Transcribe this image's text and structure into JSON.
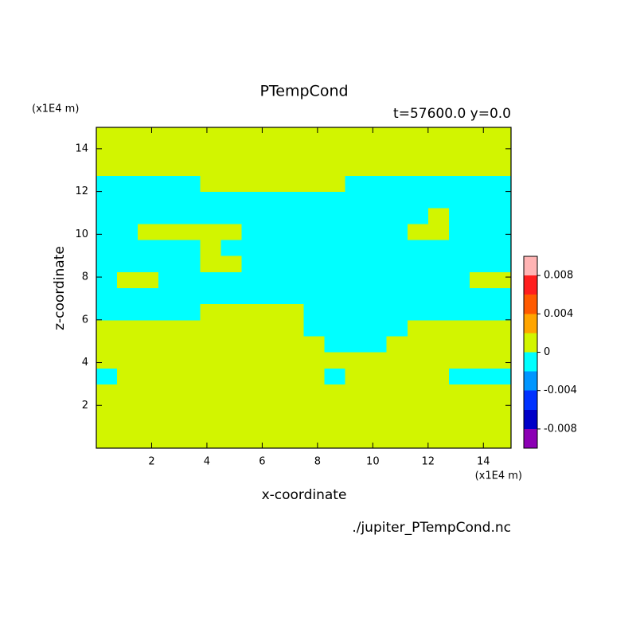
{
  "chart_data": {
    "type": "contour",
    "title": "PTempCond",
    "subtitle": "t=57600.0 y=0.0",
    "xlabel": "x-coordinate",
    "ylabel": "z-coordinate",
    "xunit": "(x1E4 m)",
    "yunit": "(x1E4 m)",
    "footer": "./jupiter_PTempCond.nc",
    "xlim": [
      0,
      15
    ],
    "ylim": [
      0,
      15
    ],
    "xticks": [
      2,
      4,
      6,
      8,
      10,
      12,
      14
    ],
    "yticks": [
      2,
      4,
      6,
      8,
      10,
      12,
      14
    ],
    "levels": [
      -0.01,
      -0.008,
      -0.006,
      -0.004,
      -0.002,
      0,
      0.002,
      0.004,
      0.006,
      0.008,
      0.01
    ],
    "colors": [
      "#8c00b4",
      "#0000c8",
      "#0032ff",
      "#0096ff",
      "#00ffff",
      "#d2f500",
      "#ffa500",
      "#ff5a00",
      "#ff1e1e",
      "#ffb4b4"
    ],
    "colorbar_ticks": [
      -0.008,
      -0.004,
      0,
      0.004,
      0.008
    ],
    "z": [
      [
        0.001,
        0.001,
        0.001,
        0.001,
        0.001,
        0.001,
        0.001,
        0.001,
        0.001,
        0.001,
        0.001,
        0.001,
        0.001,
        0.001,
        0.001,
        0.001,
        0.001,
        0.001,
        0.001,
        0.001
      ],
      [
        0.001,
        0.001,
        0.001,
        0.001,
        0.001,
        0.001,
        0.001,
        0.001,
        0.001,
        0.001,
        0.001,
        0.001,
        0.001,
        0.001,
        0.001,
        0.001,
        0.001,
        0.001,
        0.001,
        0.001
      ],
      [
        0.001,
        0.001,
        0.001,
        0.001,
        0.001,
        0.001,
        0.001,
        0.001,
        0.001,
        0.001,
        0.001,
        0.001,
        0.001,
        0.001,
        0.001,
        0.001,
        0.001,
        0.001,
        0.001,
        0.001
      ],
      [
        0.001,
        0.001,
        0.001,
        0.001,
        0.001,
        0.001,
        0.001,
        0.001,
        0.001,
        0.001,
        0.001,
        0.001,
        0.001,
        0.001,
        0.001,
        0.001,
        0.001,
        0.001,
        0.001,
        0.001
      ],
      [
        -0.001,
        0.001,
        0.001,
        0.001,
        0.001,
        0.001,
        0.001,
        0.001,
        0.001,
        0.001,
        0.001,
        -0.001,
        0.001,
        0.001,
        0.001,
        0.001,
        0.001,
        -0.001,
        -0.001,
        -0.001
      ],
      [
        0.001,
        0.001,
        0.001,
        0.001,
        0.001,
        0.001,
        0.001,
        0.001,
        0.001,
        0.001,
        0.001,
        0.001,
        0.001,
        0.001,
        0.001,
        0.001,
        0.001,
        0.001,
        0.001,
        0.001
      ],
      [
        0.001,
        0.001,
        0.001,
        0.001,
        0.001,
        0.001,
        0.001,
        0.001,
        0.001,
        0.001,
        0.001,
        -0.001,
        -0.001,
        -0.001,
        0.001,
        0.001,
        0.001,
        0.001,
        0.001,
        0.001
      ],
      [
        0.001,
        0.001,
        0.001,
        0.001,
        0.001,
        0.001,
        0.001,
        0.001,
        0.001,
        0.001,
        -0.001,
        -0.001,
        -0.001,
        -0.001,
        -0.001,
        0.001,
        0.001,
        0.001,
        0.001,
        0.001
      ],
      [
        -0.001,
        -0.001,
        -0.001,
        -0.001,
        -0.001,
        0.001,
        0.001,
        0.001,
        0.001,
        0.001,
        -0.001,
        -0.001,
        -0.001,
        -0.001,
        -0.001,
        -0.001,
        -0.001,
        -0.001,
        -0.001,
        -0.001
      ],
      [
        -0.001,
        -0.001,
        -0.001,
        -0.001,
        -0.001,
        -0.001,
        -0.001,
        -0.001,
        -0.001,
        -0.001,
        -0.001,
        -0.001,
        -0.001,
        -0.001,
        -0.001,
        -0.001,
        -0.001,
        -0.001,
        -0.001,
        -0.001
      ],
      [
        -0.001,
        0.001,
        0.001,
        -0.001,
        -0.001,
        -0.001,
        -0.001,
        -0.001,
        -0.001,
        -0.001,
        -0.001,
        -0.001,
        -0.001,
        -0.001,
        -0.001,
        -0.001,
        -0.001,
        -0.001,
        0.001,
        0.001
      ],
      [
        -0.001,
        -0.001,
        -0.001,
        -0.001,
        -0.001,
        0.001,
        0.001,
        -0.001,
        -0.001,
        -0.001,
        -0.001,
        -0.001,
        -0.001,
        -0.001,
        -0.001,
        -0.001,
        -0.001,
        -0.001,
        -0.001,
        -0.001
      ],
      [
        -0.001,
        -0.001,
        -0.001,
        -0.001,
        -0.001,
        0.001,
        -0.001,
        -0.001,
        -0.001,
        -0.001,
        -0.001,
        -0.001,
        -0.001,
        -0.001,
        -0.001,
        -0.001,
        -0.001,
        -0.001,
        -0.001,
        -0.001
      ],
      [
        -0.001,
        -0.001,
        0.001,
        0.001,
        0.001,
        0.001,
        0.001,
        -0.001,
        -0.001,
        -0.001,
        -0.001,
        -0.001,
        -0.001,
        -0.001,
        -0.001,
        0.001,
        0.001,
        -0.001,
        -0.001,
        -0.001
      ],
      [
        -0.001,
        -0.001,
        -0.001,
        -0.001,
        -0.001,
        -0.001,
        -0.001,
        -0.001,
        -0.001,
        -0.001,
        -0.001,
        -0.001,
        -0.001,
        -0.001,
        -0.001,
        -0.001,
        0.001,
        -0.001,
        -0.001,
        -0.001
      ],
      [
        -0.001,
        -0.001,
        -0.001,
        -0.001,
        -0.001,
        -0.001,
        -0.001,
        -0.001,
        -0.001,
        -0.001,
        -0.001,
        -0.001,
        -0.001,
        -0.001,
        -0.001,
        -0.001,
        -0.001,
        -0.001,
        -0.001,
        -0.001
      ],
      [
        -0.001,
        -0.001,
        -0.001,
        -0.001,
        -0.001,
        0.001,
        0.001,
        0.001,
        0.001,
        0.001,
        0.001,
        0.001,
        -0.001,
        -0.001,
        -0.001,
        -0.001,
        -0.001,
        -0.001,
        -0.001,
        -0.001
      ],
      [
        0.001,
        0.001,
        0.001,
        0.001,
        0.001,
        0.001,
        0.001,
        0.001,
        0.001,
        0.001,
        0.001,
        0.001,
        0.001,
        0.001,
        0.001,
        0.001,
        0.001,
        0.001,
        0.001,
        0.001
      ],
      [
        0.001,
        0.001,
        0.001,
        0.001,
        0.001,
        0.001,
        0.001,
        0.001,
        0.001,
        0.001,
        0.001,
        0.001,
        0.001,
        0.001,
        0.001,
        0.001,
        0.001,
        0.001,
        0.001,
        0.001
      ],
      [
        0.001,
        0.001,
        0.001,
        0.001,
        0.001,
        0.001,
        0.001,
        0.001,
        0.001,
        0.001,
        0.001,
        0.001,
        0.001,
        0.001,
        0.001,
        0.001,
        0.001,
        0.001,
        0.001,
        0.001
      ]
    ]
  }
}
